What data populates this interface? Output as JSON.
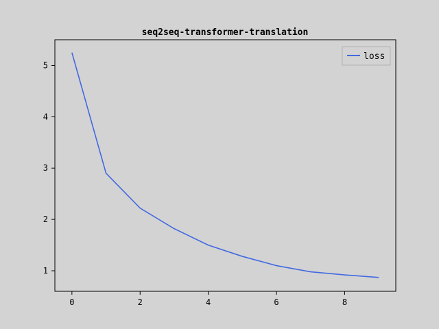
{
  "chart_data": {
    "type": "line",
    "title": "seq2seq-transformer-translation",
    "xlabel": "",
    "ylabel": "",
    "xlim": [
      -0.5,
      9.5
    ],
    "ylim": [
      0.6,
      5.5
    ],
    "xticks": [
      0,
      2,
      4,
      6,
      8
    ],
    "yticks": [
      1,
      2,
      3,
      4,
      5
    ],
    "grid": false,
    "legend_position": "top-right",
    "x": [
      0,
      1,
      2,
      3,
      4,
      5,
      6,
      7,
      8,
      9
    ],
    "series": [
      {
        "name": "loss",
        "color": "#4169e1",
        "values": [
          5.25,
          2.9,
          2.22,
          1.82,
          1.5,
          1.28,
          1.1,
          0.98,
          0.92,
          0.87
        ]
      }
    ]
  }
}
